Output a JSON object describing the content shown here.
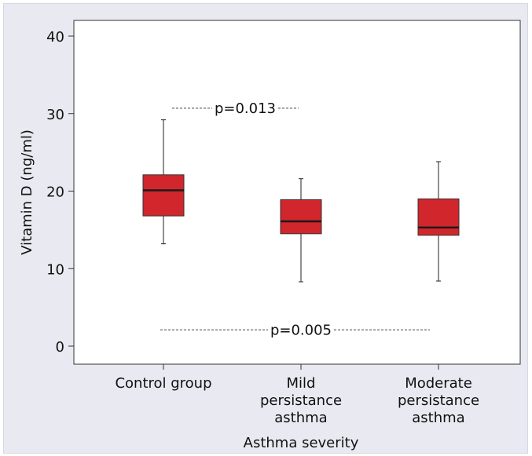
{
  "chart_data": {
    "type": "box",
    "xlabel": "Asthma severity",
    "ylabel": "Vitamin D (ng/ml)",
    "ylim": [
      0,
      40
    ],
    "yticks": [
      0,
      10,
      20,
      30,
      40
    ],
    "grid": false,
    "box_color": "#d0262c",
    "categories": [
      [
        "Control group"
      ],
      [
        "Mild",
        "persistance",
        "asthma"
      ],
      [
        "Moderate",
        "persistance",
        "asthma"
      ]
    ],
    "boxes": [
      {
        "min": 13.2,
        "q1": 16.8,
        "median": 20.1,
        "q3": 22.1,
        "max": 29.2
      },
      {
        "min": 8.3,
        "q1": 14.5,
        "median": 16.1,
        "q3": 18.9,
        "max": 21.6
      },
      {
        "min": 8.4,
        "q1": 14.3,
        "median": 15.3,
        "q3": 19.0,
        "max": 23.8
      }
    ],
    "annotations": [
      {
        "text": "p=0.013",
        "y": 30.7,
        "from": 0,
        "to": 1
      },
      {
        "text": "p=0.005",
        "y": 2.1,
        "from": 0,
        "to": 2
      }
    ]
  }
}
